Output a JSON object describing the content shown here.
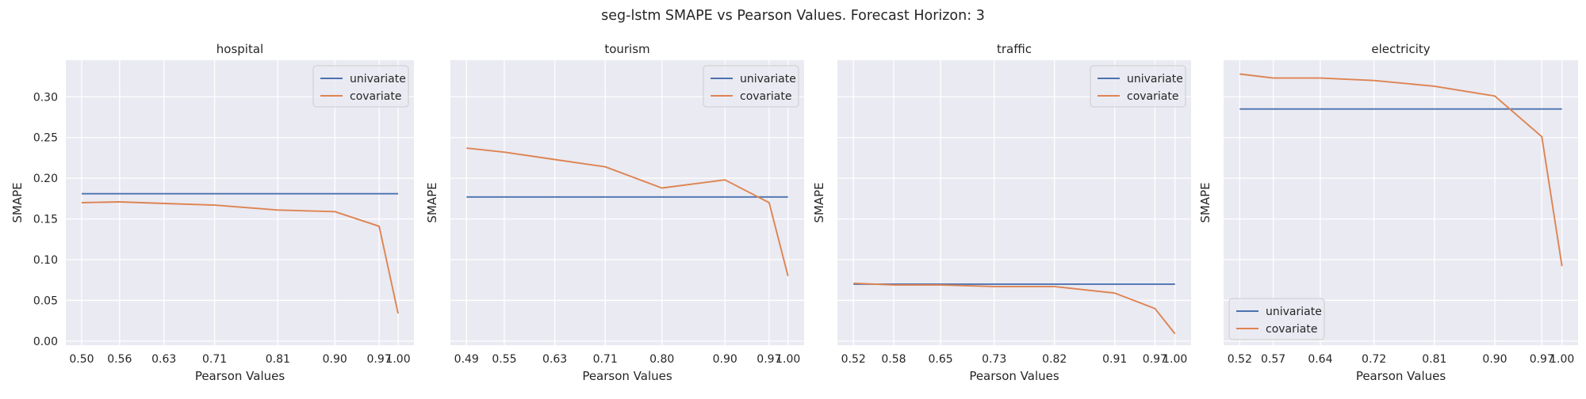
{
  "figure": {
    "title": "seg-lstm  SMAPE vs Pearson Values. Forecast Horizon: 3"
  },
  "colors": {
    "univariate": "#4c72b0",
    "covariate": "#dd8452",
    "panel_bg": "#eaeaf2",
    "grid": "#ffffff"
  },
  "chart_data": [
    {
      "type": "line",
      "title": "hospital",
      "xlabel": "Pearson Values",
      "ylabel": "SMAPE",
      "ylim": [
        -0.005,
        0.345
      ],
      "yticks": [
        0.0,
        0.05,
        0.1,
        0.15,
        0.2,
        0.25,
        0.3
      ],
      "ytick_labels": [
        "0.00",
        "0.05",
        "0.10",
        "0.15",
        "0.20",
        "0.25",
        "0.30"
      ],
      "x": [
        0.5,
        0.56,
        0.63,
        0.71,
        0.81,
        0.9,
        0.97,
        1.0
      ],
      "xtick_labels": [
        "0.50",
        "0.56",
        "0.63",
        "0.71",
        "0.81",
        "0.90",
        "0.97",
        "1.00"
      ],
      "grid": true,
      "legend": "upper right",
      "series": [
        {
          "name": "univariate",
          "values": [
            0.181,
            0.181,
            0.181,
            0.181,
            0.181,
            0.181,
            0.181,
            0.181
          ]
        },
        {
          "name": "covariate",
          "values": [
            0.17,
            0.171,
            0.169,
            0.167,
            0.161,
            0.159,
            0.141,
            0.034
          ]
        }
      ]
    },
    {
      "type": "line",
      "title": "tourism",
      "xlabel": "Pearson Values",
      "ylabel": "SMAPE",
      "ylim": [
        -0.005,
        0.345
      ],
      "yticks": [
        0.0,
        0.05,
        0.1,
        0.15,
        0.2,
        0.25,
        0.3
      ],
      "x": [
        0.49,
        0.55,
        0.63,
        0.71,
        0.8,
        0.9,
        0.97,
        1.0
      ],
      "xtick_labels": [
        "0.49",
        "0.55",
        "0.63",
        "0.71",
        "0.80",
        "0.90",
        "0.97",
        "1.00"
      ],
      "grid": true,
      "legend": "upper right",
      "series": [
        {
          "name": "univariate",
          "values": [
            0.177,
            0.177,
            0.177,
            0.177,
            0.177,
            0.177,
            0.177,
            0.177
          ]
        },
        {
          "name": "covariate",
          "values": [
            0.237,
            0.232,
            0.223,
            0.214,
            0.188,
            0.198,
            0.17,
            0.08
          ]
        }
      ]
    },
    {
      "type": "line",
      "title": "traffic",
      "xlabel": "Pearson Values",
      "ylabel": "SMAPE",
      "ylim": [
        -0.005,
        0.345
      ],
      "yticks": [
        0.0,
        0.05,
        0.1,
        0.15,
        0.2,
        0.25,
        0.3
      ],
      "x": [
        0.52,
        0.58,
        0.65,
        0.73,
        0.82,
        0.91,
        0.97,
        1.0
      ],
      "xtick_labels": [
        "0.52",
        "0.58",
        "0.65",
        "0.73",
        "0.82",
        "0.91",
        "0.97",
        "1.00"
      ],
      "grid": true,
      "legend": "upper right",
      "series": [
        {
          "name": "univariate",
          "values": [
            0.07,
            0.07,
            0.07,
            0.07,
            0.07,
            0.07,
            0.07,
            0.07
          ]
        },
        {
          "name": "covariate",
          "values": [
            0.071,
            0.069,
            0.069,
            0.067,
            0.067,
            0.059,
            0.04,
            0.009
          ]
        }
      ]
    },
    {
      "type": "line",
      "title": "electricity",
      "xlabel": "Pearson Values",
      "ylabel": "SMAPE",
      "ylim": [
        -0.005,
        0.345
      ],
      "yticks": [
        0.0,
        0.05,
        0.1,
        0.15,
        0.2,
        0.25,
        0.3
      ],
      "x": [
        0.52,
        0.57,
        0.64,
        0.72,
        0.81,
        0.9,
        0.97,
        1.0
      ],
      "xtick_labels": [
        "0.52",
        "0.57",
        "0.64",
        "0.72",
        "0.81",
        "0.90",
        "0.97",
        "1.00"
      ],
      "grid": true,
      "legend": "lower left",
      "series": [
        {
          "name": "univariate",
          "values": [
            0.285,
            0.285,
            0.285,
            0.285,
            0.285,
            0.285,
            0.285,
            0.285
          ]
        },
        {
          "name": "covariate",
          "values": [
            0.328,
            0.323,
            0.323,
            0.32,
            0.313,
            0.301,
            0.251,
            0.092
          ]
        }
      ]
    }
  ]
}
